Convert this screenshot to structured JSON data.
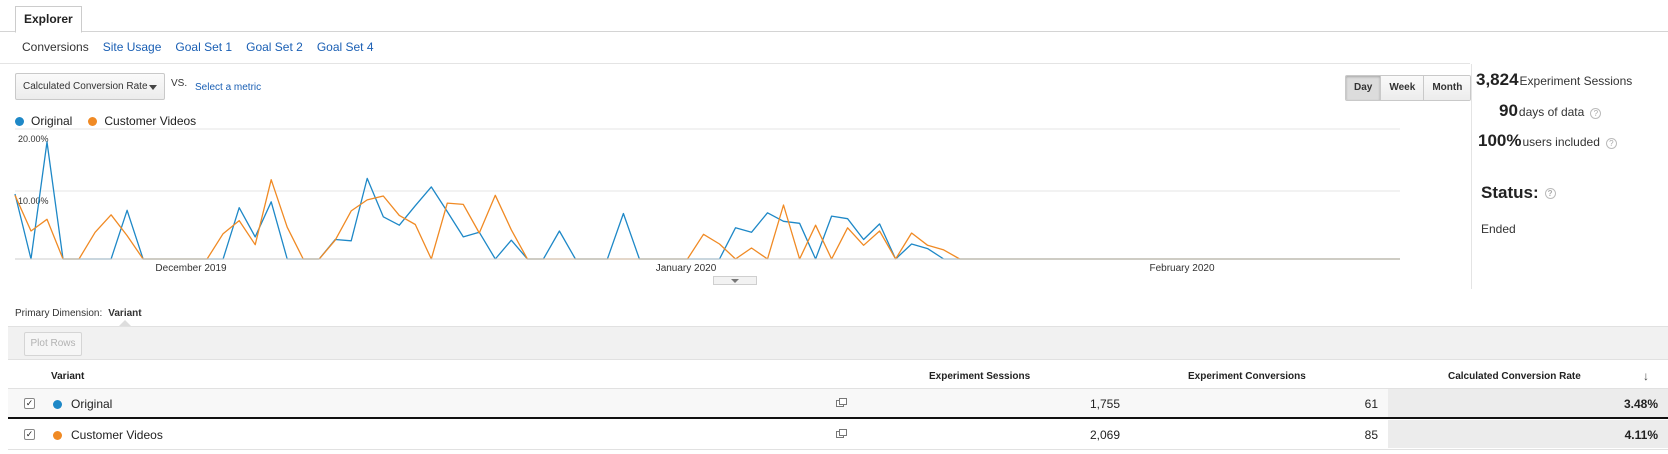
{
  "tabs": {
    "explorer": "Explorer"
  },
  "subtabs": [
    "Conversions",
    "Site Usage",
    "Goal Set 1",
    "Goal Set 2",
    "Goal Set 4"
  ],
  "toolbar": {
    "metric_value": "Calculated Conversion Rate",
    "vs_label": "VS.",
    "select_metric_label": "Select a metric"
  },
  "period_buttons": [
    "Day",
    "Week",
    "Month"
  ],
  "active_period": "Day",
  "colors": {
    "original": "#1e88c7",
    "customer_videos": "#f08a24",
    "link": "#1a5fb4"
  },
  "chart_data": {
    "type": "line",
    "y_tick_labels": [
      "20.00%",
      "10.00%"
    ],
    "x_tick_labels": [
      "December 2019",
      "January 2020",
      "February 2020"
    ],
    "ylim": [
      0,
      20
    ],
    "x_count": 90,
    "series": [
      {
        "name": "Original",
        "color": "#1e88c7",
        "values": [
          10,
          0,
          18,
          0,
          0,
          0,
          0,
          7.5,
          0,
          0,
          0,
          0,
          0,
          0,
          7.9,
          3.4,
          8.8,
          0,
          0,
          0,
          3,
          2.8,
          12.4,
          6.5,
          5.2,
          8.2,
          11.1,
          7.3,
          3.4,
          4.1,
          0,
          2.9,
          0,
          0,
          4.3,
          0,
          0,
          0,
          7,
          0,
          0,
          0,
          0,
          0,
          0,
          4.8,
          4.1,
          7.1,
          5.8,
          5.5,
          0,
          6.6,
          6.2,
          3,
          5.4,
          0,
          2.3,
          1.6,
          0,
          0,
          0,
          0,
          0,
          0,
          0,
          0,
          0,
          0,
          0,
          0,
          0,
          0,
          0,
          0,
          0,
          0,
          0,
          0,
          0,
          0,
          0,
          0,
          0,
          0,
          0,
          0,
          0,
          0,
          0,
          0
        ]
      },
      {
        "name": "Customer Videos",
        "color": "#f08a24",
        "values": [
          9.8,
          4.3,
          6.1,
          0,
          0,
          4.1,
          6.8,
          3.6,
          0,
          0,
          0,
          0,
          0,
          3.9,
          5.9,
          2.2,
          12.2,
          4.9,
          0,
          0,
          2.9,
          7.4,
          9.1,
          9.7,
          6.7,
          5.3,
          0,
          8.6,
          8.4,
          4,
          9.8,
          4.5,
          0,
          0,
          0,
          0,
          0,
          0,
          0,
          0,
          0,
          0,
          0,
          3.8,
          2.3,
          0,
          1.7,
          0,
          8.3,
          0,
          5.2,
          0,
          4.8,
          2.1,
          4.3,
          0,
          4,
          2.1,
          1.4,
          0,
          0,
          0,
          0,
          0,
          0,
          0,
          0,
          0,
          0,
          0,
          0,
          0,
          0,
          0,
          0,
          0,
          0,
          0,
          0,
          0,
          0,
          0,
          0,
          0,
          0,
          0,
          0,
          0,
          0,
          0
        ]
      }
    ],
    "legend_placement": "top-left",
    "grid": true
  },
  "summary": {
    "sessions_value": "3,824",
    "sessions_label": "Experiment Sessions",
    "days_value": "90",
    "days_label": "days of data",
    "users_value": "100%",
    "users_label": "users included",
    "status_label": "Status:",
    "status_value": "Ended"
  },
  "dimension": {
    "label": "Primary Dimension:",
    "value": "Variant"
  },
  "plot_rows_label": "Plot Rows",
  "table": {
    "headers": {
      "variant": "Variant",
      "sessions": "Experiment Sessions",
      "conversions": "Experiment Conversions",
      "rate": "Calculated Conversion Rate"
    },
    "rows": [
      {
        "name": "Original",
        "sessions": "1,755",
        "conversions": "61",
        "rate": "3.48%",
        "color": "#1e88c7"
      },
      {
        "name": "Customer Videos",
        "sessions": "2,069",
        "conversions": "85",
        "rate": "4.11%",
        "color": "#f08a24"
      }
    ]
  }
}
